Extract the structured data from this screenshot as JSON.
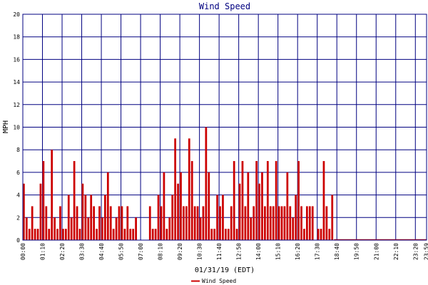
{
  "chart_data": {
    "type": "bar",
    "title": "Wind Speed",
    "xlabel": "01/31/19 (EDT)",
    "ylabel": "MPH",
    "ylim": [
      0,
      20
    ],
    "yticks": [
      "0",
      "2",
      "4",
      "6",
      "8",
      "10",
      "12",
      "14",
      "16",
      "18",
      "20"
    ],
    "xlim": [
      "00:00",
      "24:00"
    ],
    "xticks": [
      "00:00",
      "01:10",
      "02:20",
      "03:30",
      "04:40",
      "05:50",
      "07:00",
      "08:10",
      "09:20",
      "10:30",
      "11:40",
      "12:50",
      "14:00",
      "15:10",
      "16:20",
      "17:30",
      "18:40",
      "19:50",
      "21:00",
      "22:10",
      "23:20",
      "23:59"
    ],
    "grid": true,
    "legend_position": "bottom-center",
    "series": [
      {
        "name": "Wind Speed",
        "color": "#cc0000",
        "x": [
          "00:00",
          "00:10",
          "00:20",
          "00:30",
          "00:40",
          "00:50",
          "01:00",
          "01:10",
          "01:20",
          "01:30",
          "01:40",
          "01:50",
          "02:00",
          "02:10",
          "02:20",
          "02:30",
          "02:40",
          "02:50",
          "03:00",
          "03:10",
          "03:20",
          "03:30",
          "03:40",
          "03:50",
          "04:00",
          "04:10",
          "04:20",
          "04:30",
          "04:40",
          "04:50",
          "05:00",
          "05:10",
          "05:20",
          "05:30",
          "05:40",
          "05:50",
          "06:00",
          "06:10",
          "06:20",
          "06:30",
          "06:40",
          "06:50",
          "07:00",
          "07:10",
          "07:20",
          "07:30",
          "07:40",
          "07:50",
          "08:00",
          "08:10",
          "08:20",
          "08:30",
          "08:40",
          "08:50",
          "09:00",
          "09:10",
          "09:20",
          "09:30",
          "09:40",
          "09:50",
          "10:00",
          "10:10",
          "10:20",
          "10:30",
          "10:40",
          "10:50",
          "11:00",
          "11:10",
          "11:20",
          "11:30",
          "11:40",
          "11:50",
          "12:00",
          "12:10",
          "12:20",
          "12:30",
          "12:40",
          "12:50",
          "13:00",
          "13:10",
          "13:20",
          "13:30",
          "13:40",
          "13:50",
          "14:00",
          "14:10",
          "14:20",
          "14:30",
          "14:40",
          "14:50",
          "15:00",
          "15:10",
          "15:20",
          "15:30",
          "15:40",
          "15:50",
          "16:00",
          "16:10",
          "16:20",
          "16:30",
          "16:40",
          "16:50",
          "17:00",
          "17:10",
          "17:20",
          "17:30",
          "17:40",
          "17:50",
          "18:00",
          "18:10",
          "18:20"
        ],
        "values": [
          5,
          2,
          1,
          3,
          1,
          1,
          5,
          7,
          3,
          1,
          8,
          2,
          1,
          3,
          1,
          1,
          4,
          2,
          7,
          3,
          1,
          5,
          4,
          2,
          4,
          3,
          1,
          3,
          2,
          4,
          6,
          3,
          1,
          2,
          3,
          3,
          1,
          3,
          1,
          1,
          2,
          0,
          0,
          0,
          0,
          3,
          1,
          1,
          4,
          3,
          6,
          1,
          2,
          4,
          9,
          5,
          6,
          3,
          3,
          9,
          7,
          3,
          3,
          2,
          3,
          10,
          6,
          1,
          1,
          4,
          3,
          4,
          1,
          1,
          3,
          7,
          1,
          5,
          7,
          3,
          6,
          2,
          3,
          7,
          5,
          6,
          3,
          7,
          3,
          3,
          7,
          3,
          3,
          3,
          6,
          3,
          2,
          4,
          7,
          3,
          1,
          3,
          3,
          3,
          0,
          1,
          1,
          7,
          3,
          1,
          4
        ]
      }
    ]
  }
}
